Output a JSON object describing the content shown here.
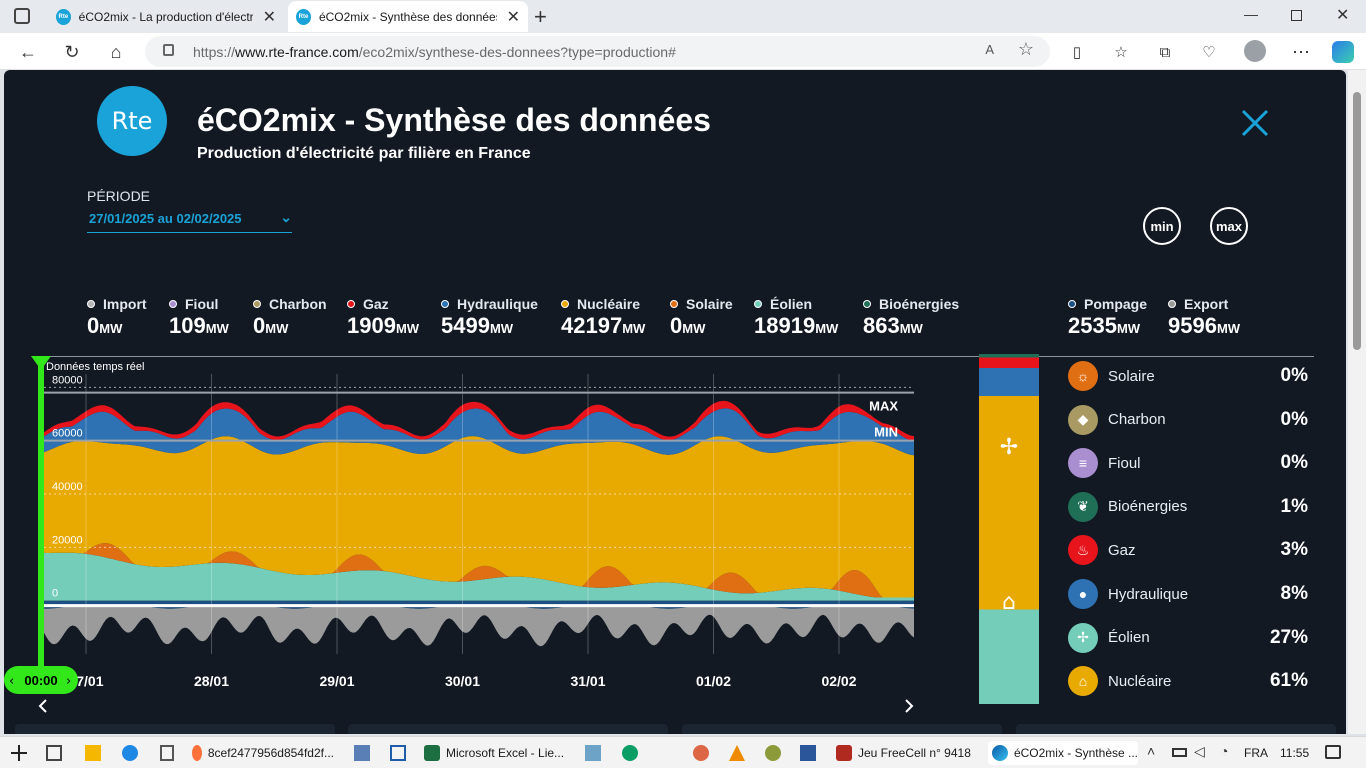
{
  "browser": {
    "tabs": [
      {
        "title": "éCO2mix - La production d'électricité"
      },
      {
        "title": "éCO2mix - Synthèse des données"
      }
    ],
    "url_prefix": "https://",
    "url_host": "www.rte-france.com",
    "url_path": "/eco2mix/synthese-des-donnees?type=production#"
  },
  "header": {
    "logo_text": "Rte",
    "title": "éCO2mix - Synthèse des données",
    "subtitle": "Production d'électricité par filière en France"
  },
  "period": {
    "label": "PÉRIODE",
    "value": "27/01/2025 au 02/02/2025"
  },
  "buttons": {
    "min": "min",
    "max": "max"
  },
  "colors": {
    "import": "#b5b5b5",
    "fioul": "#a98fd0",
    "charbon": "#a89a62",
    "gaz": "#e8141c",
    "hydraulique": "#2e72b4",
    "nucleaire": "#e8a900",
    "solaire": "#e06f14",
    "eolien": "#74cdb9",
    "bioenergies": "#1f6e56",
    "pompage": "#1d4f83",
    "export": "#9b9b9b"
  },
  "stats": [
    {
      "key": "import",
      "name": "Import",
      "value": "0",
      "unit": "MW"
    },
    {
      "key": "fioul",
      "name": "Fioul",
      "value": "109",
      "unit": "MW"
    },
    {
      "key": "charbon",
      "name": "Charbon",
      "value": "0",
      "unit": "MW"
    },
    {
      "key": "gaz",
      "name": "Gaz",
      "value": "1909",
      "unit": "MW"
    },
    {
      "key": "hydraulique",
      "name": "Hydraulique",
      "value": "5499",
      "unit": "MW"
    },
    {
      "key": "nucleaire",
      "name": "Nucléaire",
      "value": "42197",
      "unit": "MW"
    },
    {
      "key": "solaire",
      "name": "Solaire",
      "value": "0",
      "unit": "MW"
    },
    {
      "key": "eolien",
      "name": "Éolien",
      "value": "18919",
      "unit": "MW"
    },
    {
      "key": "bioenergies",
      "name": "Bioénergies",
      "value": "863",
      "unit": "MW"
    },
    {
      "key": "pompage",
      "name": "Pompage",
      "value": "2535",
      "unit": "MW"
    },
    {
      "key": "export",
      "name": "Export",
      "value": "9596",
      "unit": "MW"
    }
  ],
  "chart_data": {
    "type": "area",
    "caption": "Données temps réel",
    "y_ticks": [
      "80000",
      "60000",
      "40000",
      "20000",
      "0"
    ],
    "y_range": [
      -20000,
      85000
    ],
    "x_ticks": [
      "27/01",
      "28/01",
      "29/01",
      "30/01",
      "31/01",
      "01/02",
      "02/02"
    ],
    "max_label": "MAX",
    "min_label": "MIN",
    "max_value": 78000,
    "min_value": 60000,
    "cursor_time": "00:00",
    "series": [
      {
        "name": "Éolien",
        "key": "eolien",
        "description": "declining from ~18000 to ~2000 MW over the week"
      },
      {
        "name": "Solaire",
        "key": "solaire",
        "description": "daily peaks 2000-8000 MW"
      },
      {
        "name": "Nucléaire",
        "key": "nucleaire",
        "description": "fills total up to ~58000-62000 MW"
      },
      {
        "name": "Hydraulique",
        "key": "hydraulique",
        "description": "~5000-12000 MW"
      },
      {
        "name": "Gaz",
        "key": "gaz",
        "description": "~1000-3000 MW"
      },
      {
        "name": "Export",
        "key": "export",
        "description": "negative ~-7000 to -15000 MW"
      },
      {
        "name": "Pompage",
        "key": "pompage",
        "description": "negative ~-1000 to -3000 MW"
      }
    ]
  },
  "bar_stack": [
    {
      "key": "eolien",
      "pct": 27
    },
    {
      "key": "nucleaire",
      "pct": 61
    },
    {
      "key": "hydraulique",
      "pct": 8
    },
    {
      "key": "gaz",
      "pct": 3
    },
    {
      "key": "bioenergies",
      "pct": 1
    }
  ],
  "legend": [
    {
      "key": "solaire",
      "name": "Solaire",
      "pct": "0%",
      "icon": "sun-icon",
      "glyph": "☼"
    },
    {
      "key": "charbon",
      "name": "Charbon",
      "pct": "0%",
      "icon": "coal-icon",
      "glyph": "◆"
    },
    {
      "key": "fioul",
      "name": "Fioul",
      "pct": "0%",
      "icon": "oil-drum-icon",
      "glyph": "≡"
    },
    {
      "key": "bioenergies",
      "name": "Bioénergies",
      "pct": "1%",
      "icon": "leaf-icon",
      "glyph": "❦"
    },
    {
      "key": "gaz",
      "name": "Gaz",
      "pct": "3%",
      "icon": "flame-icon",
      "glyph": "♨"
    },
    {
      "key": "hydraulique",
      "name": "Hydraulique",
      "pct": "8%",
      "icon": "water-drop-icon",
      "glyph": "●"
    },
    {
      "key": "eolien",
      "name": "Éolien",
      "pct": "27%",
      "icon": "wind-turbine-icon",
      "glyph": "✢"
    },
    {
      "key": "nucleaire",
      "name": "Nucléaire",
      "pct": "61%",
      "icon": "nuclear-plant-icon",
      "glyph": "⌂"
    }
  ],
  "taskbar": {
    "apps": [
      {
        "label": "8cef2477956d854fd2f..."
      },
      {
        "label": "Microsoft Excel - Lie..."
      },
      {
        "label": "Jeu FreeCell n° 9418"
      },
      {
        "label": "éCO2mix - Synthèse ..."
      }
    ],
    "lang": "FRA",
    "time": "11:55"
  }
}
